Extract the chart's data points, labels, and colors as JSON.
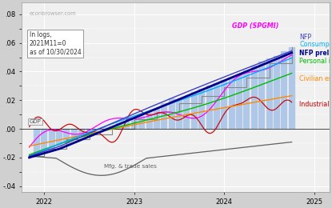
{
  "watermark": "econbrowser.com",
  "annotation": "In logs,\n2021M11=0\nas of 10/30/2024",
  "background_color": "#d0d0d0",
  "plot_bg": "#f0f0f0",
  "bar_color": "#b0c8e8",
  "series_colors": {
    "NFP_prel_bnchmk": "#00008B",
    "NFP": "#4040c0",
    "GDP_SPGMI": "#ff00ff",
    "Consumption": "#00aaff",
    "Personal_income": "#00bb00",
    "Civilian_empl": "#ff8800",
    "Industrial_prodn": "#cc0000",
    "Mfg_trade_sales": "#606060",
    "GDP_step": "#888888"
  },
  "yticks": [
    -0.04,
    -0.02,
    0.0,
    0.02,
    0.04,
    0.06,
    0.08
  ],
  "ytick_labels": [
    "-.04",
    "-.02",
    ".00",
    ".02",
    ".04",
    ".06",
    ".08"
  ],
  "xticks": [
    2022,
    2023,
    2024,
    2025
  ],
  "xtick_labels": [
    "2022",
    "2023",
    "2024",
    "2025"
  ]
}
